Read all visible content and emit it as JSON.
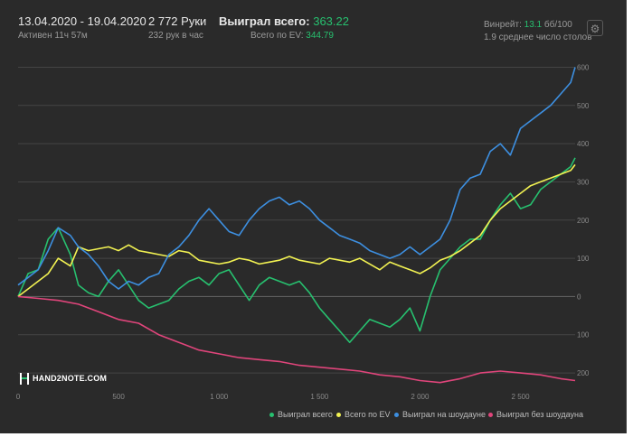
{
  "header": {
    "date_range": "13.04.2020 - 19.04.2020",
    "active_time": "Активен 11ч 57м",
    "hands": "2 772 Руки",
    "hands_per_hour": "232 рук в час",
    "won_label": "Выиграл всего:",
    "won_value": "363.22",
    "ev_label": "Всего по EV:",
    "ev_value": "344.79",
    "winrate_label": "Винрейт:",
    "winrate_value": "13.1",
    "winrate_unit": "бб/100",
    "tables": "1.9 среднее число столов"
  },
  "logo": {
    "text": "HAND2NOTE.COM"
  },
  "colors": {
    "background": "#2a2a2a",
    "won_total": "#27c06f",
    "ev_total": "#f2f252",
    "showdown": "#3d8fe0",
    "no_showdown": "#e0457b",
    "grid": "#444444"
  },
  "chart_data": {
    "type": "line",
    "x_ticks": [
      0,
      500,
      1000,
      1500,
      2000,
      2500
    ],
    "x_tick_labels": [
      "0",
      "500",
      "1 000",
      "1 500",
      "2 000",
      "2 500"
    ],
    "y_ticks": [
      600,
      500,
      400,
      300,
      200,
      100,
      0,
      -100,
      -200
    ],
    "y_tick_labels": [
      "600",
      "500",
      "400",
      "300",
      "200",
      "100",
      "0",
      "100",
      "200"
    ],
    "xlim": [
      0,
      2772
    ],
    "ylim": [
      -240,
      620
    ],
    "grid": true,
    "legend_position": "bottom",
    "series": [
      {
        "name": "Выиграл всего",
        "color": "#27c06f",
        "x": [
          0,
          50,
          100,
          150,
          200,
          260,
          300,
          350,
          400,
          450,
          500,
          550,
          600,
          650,
          700,
          750,
          800,
          850,
          900,
          950,
          1000,
          1050,
          1100,
          1150,
          1200,
          1250,
          1300,
          1350,
          1400,
          1450,
          1500,
          1550,
          1600,
          1650,
          1700,
          1750,
          1800,
          1850,
          1900,
          1950,
          2000,
          2050,
          2100,
          2150,
          2200,
          2250,
          2300,
          2350,
          2400,
          2450,
          2500,
          2550,
          2600,
          2650,
          2700,
          2750,
          2772
        ],
        "values": [
          0,
          60,
          70,
          150,
          180,
          110,
          30,
          10,
          0,
          40,
          70,
          30,
          -10,
          -30,
          -20,
          -10,
          20,
          40,
          50,
          30,
          60,
          70,
          30,
          -10,
          30,
          50,
          40,
          30,
          40,
          10,
          -30,
          -60,
          -90,
          -120,
          -90,
          -60,
          -70,
          -80,
          -60,
          -30,
          -90,
          0,
          70,
          100,
          130,
          150,
          150,
          200,
          240,
          270,
          230,
          240,
          280,
          300,
          320,
          340,
          363
        ]
      },
      {
        "name": "Всего по EV",
        "color": "#f2f252",
        "x": [
          0,
          50,
          100,
          150,
          200,
          260,
          300,
          350,
          400,
          450,
          500,
          550,
          600,
          650,
          700,
          750,
          800,
          850,
          900,
          950,
          1000,
          1050,
          1100,
          1150,
          1200,
          1250,
          1300,
          1350,
          1400,
          1450,
          1500,
          1550,
          1600,
          1650,
          1700,
          1750,
          1800,
          1850,
          1900,
          1950,
          2000,
          2050,
          2100,
          2150,
          2200,
          2250,
          2300,
          2350,
          2400,
          2450,
          2500,
          2550,
          2600,
          2650,
          2700,
          2750,
          2772
        ],
        "values": [
          0,
          20,
          40,
          60,
          100,
          80,
          130,
          120,
          125,
          130,
          120,
          135,
          120,
          115,
          110,
          105,
          120,
          115,
          95,
          90,
          85,
          90,
          100,
          95,
          85,
          90,
          95,
          105,
          95,
          90,
          85,
          100,
          95,
          90,
          100,
          85,
          70,
          90,
          80,
          70,
          60,
          75,
          95,
          105,
          120,
          140,
          160,
          200,
          230,
          250,
          270,
          290,
          300,
          310,
          320,
          330,
          345
        ]
      },
      {
        "name": "Выиграл на шоудауне",
        "color": "#3d8fe0",
        "x": [
          0,
          50,
          100,
          150,
          200,
          260,
          300,
          350,
          400,
          450,
          500,
          550,
          600,
          650,
          700,
          750,
          800,
          850,
          900,
          950,
          1000,
          1050,
          1100,
          1150,
          1200,
          1250,
          1300,
          1350,
          1400,
          1450,
          1500,
          1550,
          1600,
          1650,
          1700,
          1750,
          1800,
          1850,
          1900,
          1950,
          2000,
          2050,
          2100,
          2150,
          2200,
          2250,
          2300,
          2350,
          2400,
          2450,
          2500,
          2550,
          2600,
          2650,
          2700,
          2750,
          2772
        ],
        "values": [
          30,
          50,
          70,
          120,
          180,
          160,
          130,
          110,
          80,
          40,
          20,
          40,
          30,
          50,
          60,
          110,
          130,
          160,
          200,
          230,
          200,
          170,
          160,
          200,
          230,
          250,
          260,
          240,
          250,
          230,
          200,
          180,
          160,
          150,
          140,
          120,
          110,
          100,
          110,
          130,
          110,
          130,
          150,
          200,
          280,
          310,
          320,
          380,
          400,
          370,
          440,
          460,
          480,
          500,
          530,
          560,
          600
        ]
      },
      {
        "name": "Выиграл без шоудауна",
        "color": "#e0457b",
        "x": [
          0,
          100,
          200,
          300,
          400,
          500,
          600,
          700,
          800,
          900,
          1000,
          1100,
          1200,
          1300,
          1400,
          1500,
          1600,
          1700,
          1800,
          1900,
          2000,
          2100,
          2200,
          2300,
          2400,
          2500,
          2600,
          2700,
          2772
        ],
        "values": [
          0,
          -5,
          -10,
          -20,
          -40,
          -60,
          -70,
          -100,
          -120,
          -140,
          -150,
          -160,
          -165,
          -170,
          -180,
          -185,
          -190,
          -195,
          -205,
          -210,
          -220,
          -225,
          -215,
          -200,
          -195,
          -200,
          -205,
          -215,
          -220
        ]
      }
    ]
  }
}
